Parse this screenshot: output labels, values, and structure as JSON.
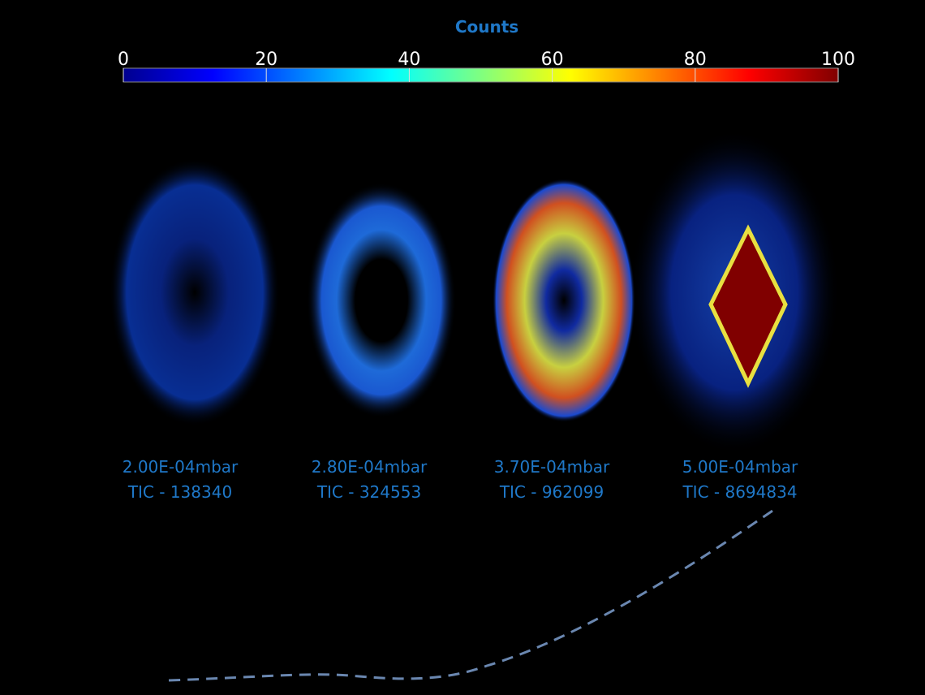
{
  "colorbar": {
    "title": "Counts",
    "lim": [
      0,
      100
    ],
    "ticks": [
      0,
      20,
      40,
      60,
      80,
      100
    ]
  },
  "panels": [
    {
      "pressure": "2.00E-04mbar",
      "tic": "TIC - 138340"
    },
    {
      "pressure": "2.80E-04mbar",
      "tic": "TIC - 324553"
    },
    {
      "pressure": "3.70E-04mbar",
      "tic": "TIC - 962099"
    },
    {
      "pressure": "5.00E-04mbar",
      "tic": "TIC - 8694834"
    }
  ]
}
